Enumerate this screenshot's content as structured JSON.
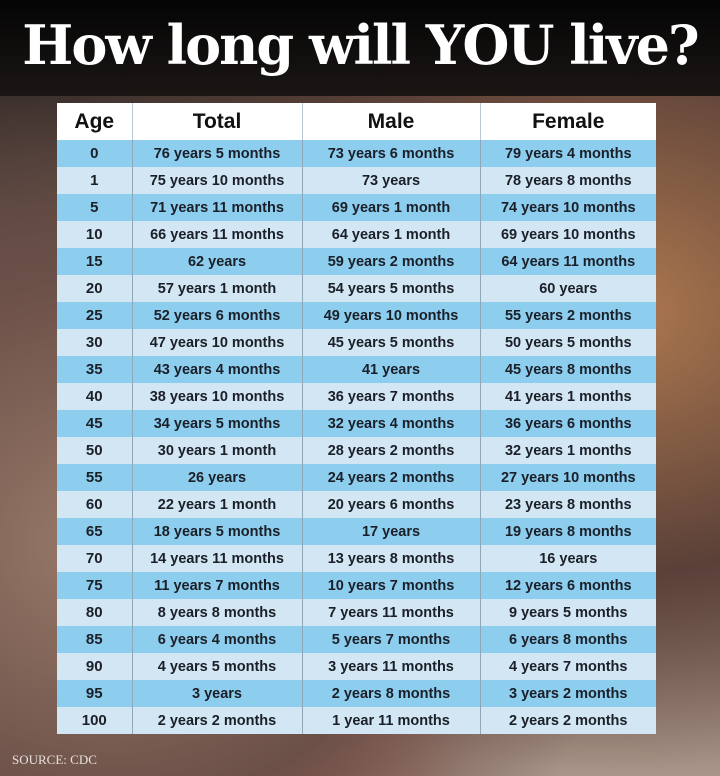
{
  "title": "How long will YOU live?",
  "source": "SOURCE: CDC",
  "colors": {
    "row_blue": "#8dcdee",
    "row_light": "#d3e6f3",
    "header": "#ffffff",
    "title_bar": "#000000"
  },
  "chart_data": {
    "type": "table",
    "title": "How long will YOU live?",
    "columns": [
      "Age",
      "Total",
      "Male",
      "Female"
    ],
    "rows": [
      [
        "0",
        "76 years 5 months",
        "73 years 6 months",
        "79 years 4 months"
      ],
      [
        "1",
        "75 years 10 months",
        "73 years",
        "78 years 8 months"
      ],
      [
        "5",
        "71 years 11 months",
        "69 years 1 month",
        "74 years 10 months"
      ],
      [
        "10",
        "66 years 11 months",
        "64 years 1 month",
        "69 years 10 months"
      ],
      [
        "15",
        "62 years",
        "59 years 2 months",
        "64 years 11 months"
      ],
      [
        "20",
        "57 years 1 month",
        "54 years 5 months",
        "60 years"
      ],
      [
        "25",
        "52 years 6 months",
        "49 years 10 months",
        "55 years 2 months"
      ],
      [
        "30",
        "47 years 10 months",
        "45 years 5 months",
        "50 years 5 months"
      ],
      [
        "35",
        "43 years 4 months",
        "41 years",
        "45 years 8 months"
      ],
      [
        "40",
        "38 years 10 months",
        "36 years 7 months",
        "41 years 1 months"
      ],
      [
        "45",
        "34 years 5 months",
        "32 years 4 months",
        "36 years 6 months"
      ],
      [
        "50",
        "30 years 1 month",
        "28 years 2 months",
        "32 years 1 months"
      ],
      [
        "55",
        "26 years",
        "24 years 2 months",
        "27 years 10 months"
      ],
      [
        "60",
        "22 years 1 month",
        "20 years 6 months",
        "23 years 8 months"
      ],
      [
        "65",
        "18 years 5 months",
        "17 years",
        "19 years 8 months"
      ],
      [
        "70",
        "14 years 11 months",
        "13 years 8 months",
        "16 years"
      ],
      [
        "75",
        "11 years 7 months",
        "10 years 7 months",
        "12 years 6 months"
      ],
      [
        "80",
        "8 years 8 months",
        "7 years 11 months",
        "9 years 5 months"
      ],
      [
        "85",
        "6 years 4 months",
        "5 years 7 months",
        "6 years 8 months"
      ],
      [
        "90",
        "4 years 5 months",
        "3 years 11 months",
        "4 years 7 months"
      ],
      [
        "95",
        "3 years",
        "2 years 8 months",
        "3 years 2 months"
      ],
      [
        "100",
        "2 years 2 months",
        "1 year 11 months",
        "2 years 2 months"
      ]
    ]
  }
}
